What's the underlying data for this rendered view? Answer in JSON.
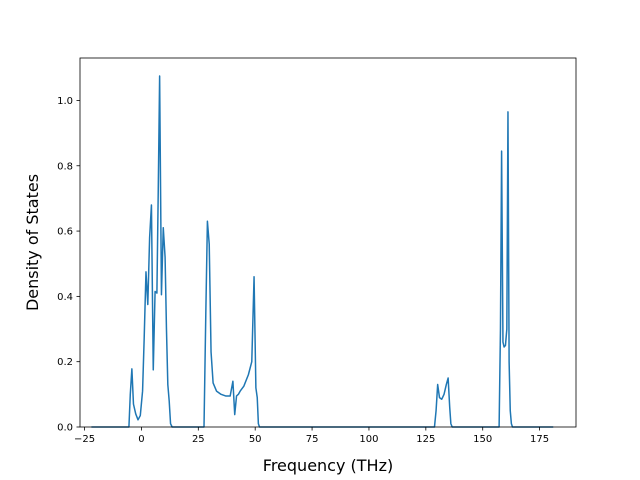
{
  "chart_data": {
    "type": "line",
    "xlabel": "Frequency (THz)",
    "ylabel": "Density of States",
    "xlim": [
      -27,
      191
    ],
    "ylim": [
      0,
      1.13
    ],
    "x_ticks": [
      -25,
      0,
      25,
      50,
      75,
      100,
      125,
      150,
      175
    ],
    "y_ticks": [
      0.0,
      0.2,
      0.4,
      0.6,
      0.8,
      1.0
    ],
    "x_tick_labels": [
      "−25",
      "0",
      "25",
      "50",
      "75",
      "100",
      "125",
      "150",
      "175"
    ],
    "y_tick_labels": [
      "0.0",
      "0.2",
      "0.4",
      "0.6",
      "0.8",
      "1.0"
    ],
    "grid": false,
    "line_color": "#1f77b4",
    "series": [
      {
        "x": [
          -22,
          -5.5,
          -4.9,
          -4.2,
          -3.5,
          -2.5,
          -1.5,
          -0.5,
          0.5,
          1.2,
          2,
          2.8,
          3.6,
          4.4,
          5.2,
          6,
          6.8,
          7.4,
          8,
          8.8,
          9.6,
          10.4,
          11,
          11.6,
          12.2,
          12.8,
          13.5,
          14.3,
          15.2,
          16,
          27.5,
          28.3,
          29,
          29.8,
          30.6,
          31.5,
          33,
          35,
          37,
          39,
          40.2,
          41,
          41.8,
          42.6,
          43.4,
          45,
          47,
          48.5,
          49.5,
          50.3,
          50.9,
          51.4,
          51.9,
          52.4,
          52.9,
          53.5,
          128.8,
          129.5,
          130.2,
          131,
          132,
          133,
          134,
          134.8,
          135.5,
          136,
          136.6,
          137.4,
          157.2,
          157.8,
          158.3,
          158.9,
          159.4,
          160,
          160.6,
          161.1,
          161.6,
          162.1,
          162.6,
          163.1,
          163.6,
          164.1,
          164.7,
          165.3,
          181
        ],
        "y": [
          0,
          0,
          0.1,
          0.178,
          0.07,
          0.04,
          0.022,
          0.035,
          0.11,
          0.27,
          0.475,
          0.375,
          0.58,
          0.68,
          0.175,
          0.415,
          0.41,
          0.73,
          1.075,
          0.405,
          0.61,
          0.52,
          0.3,
          0.13,
          0.08,
          0.01,
          0,
          0,
          0,
          0,
          0,
          0.35,
          0.63,
          0.56,
          0.23,
          0.135,
          0.11,
          0.1,
          0.095,
          0.095,
          0.14,
          0.038,
          0.095,
          0.1,
          0.11,
          0.125,
          0.16,
          0.2,
          0.46,
          0.12,
          0.09,
          0.01,
          0,
          0,
          0,
          0,
          0,
          0.05,
          0.13,
          0.09,
          0.085,
          0.1,
          0.13,
          0.15,
          0.06,
          0.01,
          0,
          0,
          0,
          0.3,
          0.845,
          0.26,
          0.245,
          0.25,
          0.3,
          0.965,
          0.2,
          0.05,
          0.01,
          0,
          0,
          0,
          0,
          0,
          0
        ]
      }
    ]
  }
}
